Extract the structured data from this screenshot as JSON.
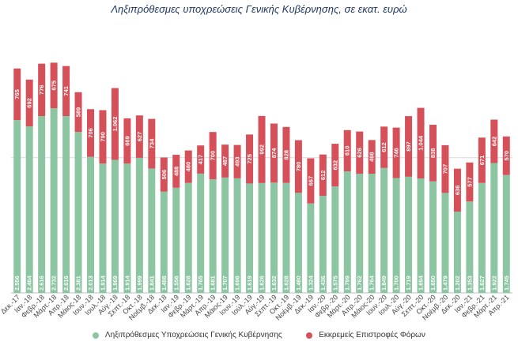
{
  "chart_data": {
    "type": "bar",
    "stacked": true,
    "title": "Ληξιπρόθεσμες υποχρεώσεις Γενικής Κυβέρνησης, σε εκατ. ευρώ",
    "xlabel": "",
    "ylabel": "",
    "ylim": [
      0,
      3600
    ],
    "grid": true,
    "legend_position": "bottom",
    "categories": [
      "Δεκ.-17",
      "Ιαν.-18",
      "Φεβρ.-18",
      "Μάρτ.-18",
      "Απρ.-18",
      "Μάιος-18",
      "Ιουν.-18",
      "Ιουλ.-18",
      "Αύγ.-18",
      "Σεπτ.-18",
      "Οκτ.-18",
      "Νοέμβ.-18",
      "Δεκ.-18",
      "Ιαν.-19",
      "Φεβρ.-19",
      "Μάρτ.-19",
      "Απρ.-19",
      "Μάιος-19",
      "Ιουν.-19",
      "Ιούλ.-19",
      "Αύγ.-19",
      "Σεπτ.-19",
      "Οκτ.-19",
      "Νοέμβ.-19",
      "Δεκ.-19",
      "Ιαν.-20",
      "Φεβρ.-20",
      "Μάρτ.-20",
      "Απρ.-20",
      "Μάιος-20",
      "Ιουν.-20",
      "Ιουλ.-20",
      "Αύγ.-20",
      "Σεπτ.-20",
      "Οκτ.-20",
      "Νοέμβ.-20",
      "Δεκ.-20",
      "Ιαν.-21",
      "Φεβρ.-21",
      "Μάρτ.-21",
      "Απρ.-21"
    ],
    "series": [
      {
        "name": "Ληξιπρόθεσμες Υποχρεώσεις Γενικής Κυβέρνησης",
        "color": "#8cc5a2",
        "values": [
          2556,
          2464,
          2616,
          2732,
          2616,
          2381,
          2013,
          1914,
          1969,
          1914,
          1999,
          1841,
          1498,
          1556,
          1628,
          1765,
          1681,
          1707,
          1696,
          1619,
          1626,
          1632,
          1628,
          1480,
          1324,
          1436,
          1575,
          1799,
          1762,
          1764,
          1849,
          1700,
          1719,
          1694,
          1650,
          1479,
          1202,
          1353,
          1627,
          1922,
          1745
        ],
        "labels": [
          "2.556",
          "2.464",
          "2.616",
          "2.732",
          "2.616",
          "2.381",
          "2.013",
          "1.914",
          "1.969",
          "1.914",
          "1.999",
          "1.841",
          "1.498",
          "1.556",
          "1.628",
          "1.765",
          "1.681",
          "1.707",
          "1.696",
          "1.619",
          "1.626",
          "1.632",
          "1.628",
          "1.480",
          "1.324",
          "1.436",
          "1.575",
          "1.799",
          "1.762",
          "1.764",
          "1.849",
          "1.700",
          "1.719",
          "1.694",
          "1.650",
          "1.479",
          "1.202",
          "1.353",
          "1.627",
          "1.922",
          "1.745"
        ]
      },
      {
        "name": "Εκκρεμείς Επιστροφές Φόρων",
        "color": "#d6505a",
        "values": [
          765,
          692,
          776,
          675,
          741,
          589,
          706,
          790,
          1062,
          669,
          627,
          734,
          506,
          488,
          480,
          417,
          700,
          487,
          493,
          725,
          992,
          874,
          828,
          780,
          667,
          612,
          632,
          610,
          626,
          498,
          612,
          746,
          897,
          1044,
          838,
          707,
          636,
          577,
          671,
          642,
          570
        ],
        "labels": [
          "765",
          "692",
          "776",
          "675",
          "741",
          "589",
          "706",
          "790",
          "1.062",
          "669",
          "627",
          "734",
          "506",
          "488",
          "480",
          "417",
          "700",
          "487",
          "493",
          "725",
          "992",
          "874",
          "828",
          "780",
          "667",
          "612",
          "632",
          "610",
          "626",
          "498",
          "612",
          "746",
          "897",
          "1.044",
          "838",
          "707",
          "636",
          "577",
          "671",
          "642",
          "570"
        ]
      }
    ]
  }
}
